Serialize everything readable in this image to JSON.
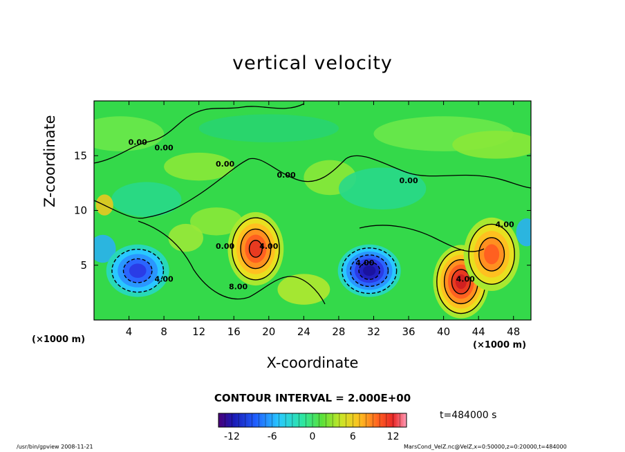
{
  "chart_data": {
    "type": "heatmap",
    "title": "vertical velocity",
    "xlabel": "X-coordinate",
    "ylabel": "Z-coordinate",
    "x_unit": "(×1000 m)",
    "xlim": [
      0,
      50
    ],
    "ylim": [
      0,
      20
    ],
    "x_ticks": [
      4,
      8,
      12,
      16,
      20,
      24,
      28,
      32,
      36,
      40,
      44,
      48
    ],
    "y_ticks": [
      5,
      10,
      15
    ],
    "contour_interval_text": "CONTOUR INTERVAL = 2.000E+00",
    "contour_labels": [
      {
        "text": "0.00",
        "x": 5,
        "z": 16
      },
      {
        "text": "0.00",
        "x": 8,
        "z": 15.5
      },
      {
        "text": "0.00",
        "x": 15,
        "z": 6.5
      },
      {
        "text": "0.00",
        "x": 15,
        "z": 14
      },
      {
        "text": "0.00",
        "x": 22,
        "z": 13
      },
      {
        "text": "0.00",
        "x": 36,
        "z": 12.5
      },
      {
        "text": "4.00",
        "x": 8,
        "z": 3.5
      },
      {
        "text": "4.00",
        "x": 20,
        "z": 6.5
      },
      {
        "text": "8.00",
        "x": 16.5,
        "z": 2.8
      },
      {
        "text": "4.00",
        "x": 31,
        "z": 5
      },
      {
        "text": "4.00",
        "x": 42.5,
        "z": 3.5
      },
      {
        "text": "4.00",
        "x": 47,
        "z": 8.5
      }
    ],
    "features": [
      {
        "kind": "max",
        "x": 18.5,
        "z": 6.5,
        "value": 10
      },
      {
        "kind": "max",
        "x": 42,
        "z": 3.5,
        "value": 12
      },
      {
        "kind": "max",
        "x": 45.5,
        "z": 6,
        "value": 8
      },
      {
        "kind": "min",
        "x": 31.5,
        "z": 4.5,
        "value": -12
      },
      {
        "kind": "min",
        "x": 5,
        "z": 4.5,
        "value": -8
      }
    ],
    "colorbar": {
      "min": -14,
      "max": 14,
      "ticks": [
        -12,
        -6,
        0,
        6,
        12
      ]
    },
    "time_label": "t=484000 s"
  },
  "footer": {
    "left": "/usr/bin/gpview  2008-11-21",
    "right": "MarsCond_VelZ.nc@VelZ,x=0:50000,z=0:20000,t=484000"
  },
  "colors": {
    "background_field": "#34d94a",
    "positive_peak": "#e0201a",
    "negative_peak": "#1a2ad6"
  }
}
